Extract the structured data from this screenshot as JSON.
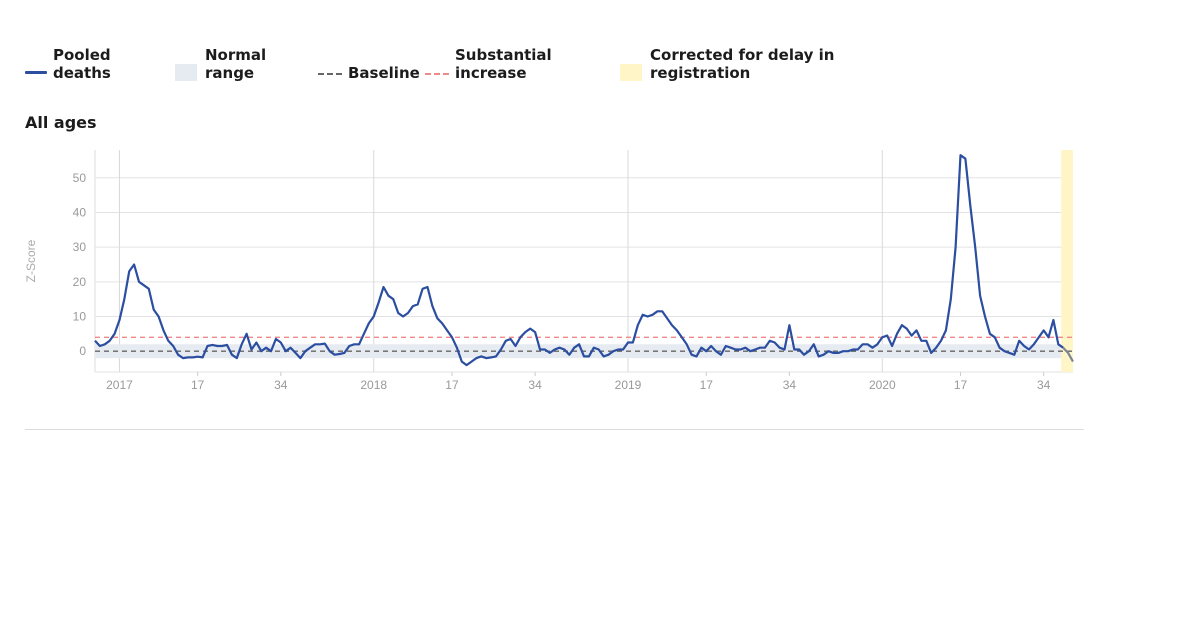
{
  "legend": {
    "pooled": "Pooled\ndeaths",
    "normal": "Normal\nrange",
    "baseline": "Baseline",
    "substantial": "Substantial\nincrease",
    "corrected": "Corrected for delay in\nregistration"
  },
  "chart_data": {
    "type": "line",
    "title": "All ages",
    "xlabel": "",
    "ylabel": "Z-Score",
    "ylim": [
      -6,
      58
    ],
    "yticks": [
      0,
      10,
      20,
      30,
      40,
      50
    ],
    "year_labels": [
      "2017",
      "2018",
      "2019",
      "2020"
    ],
    "week_labels": [
      "17",
      "34",
      "17",
      "34",
      "17",
      "34",
      "17",
      "34"
    ],
    "baseline": 0,
    "substantial_increase_threshold": 4,
    "normal_range": [
      -2,
      2
    ],
    "series": [
      {
        "name": "Pooled deaths",
        "color": "#2b4ea0",
        "values": [
          3,
          1.5,
          2,
          3,
          5,
          9,
          15,
          23,
          25,
          20,
          19,
          18,
          12,
          10,
          6,
          3,
          1.5,
          -1,
          -2,
          -1.8,
          -1.8,
          -1.6,
          -1.8,
          1.5,
          1.8,
          1.5,
          1.5,
          1.8,
          -1,
          -2,
          2,
          5,
          0.5,
          2.5,
          0,
          1,
          0,
          3.5,
          2.5,
          0,
          1,
          -0.5,
          -2,
          0,
          1,
          2,
          2,
          2.2,
          0,
          -1,
          -0.8,
          -0.5,
          1.5,
          2,
          2,
          5,
          8,
          10,
          14,
          18.5,
          16,
          15,
          11,
          10,
          11,
          13,
          13.5,
          18,
          18.5,
          13,
          9.5,
          8,
          6,
          4,
          1,
          -3,
          -4,
          -3,
          -2,
          -1.5,
          -2,
          -1.8,
          -1.5,
          0.5,
          3,
          3.5,
          1.5,
          4,
          5.5,
          6.5,
          5.5,
          0.5,
          0.5,
          -0.5,
          0.5,
          1,
          0.5,
          -1,
          1,
          2,
          -1.5,
          -1.5,
          1,
          0.5,
          -1.5,
          -1,
          0,
          0.5,
          0.5,
          2.5,
          2.5,
          7.5,
          10.5,
          10,
          10.5,
          11.5,
          11.5,
          9.5,
          7.5,
          6,
          4,
          2,
          -1,
          -1.5,
          1,
          0,
          1.5,
          0,
          -1,
          1.5,
          1,
          0.5,
          0.5,
          1,
          0,
          0.5,
          1,
          1,
          3,
          2.5,
          1,
          0.5,
          7.5,
          0.5,
          0.5,
          -1,
          0,
          2,
          -1.5,
          -1,
          0,
          -0.5,
          -0.5,
          0,
          0,
          0.5,
          0.5,
          2,
          2,
          1,
          2,
          4,
          4.5,
          1.5,
          5,
          7.5,
          6.5,
          4.5,
          6,
          3,
          3,
          -0.5,
          1,
          3,
          6,
          15,
          30,
          56.5,
          55.5,
          42,
          30,
          16,
          10,
          5,
          4,
          1,
          0,
          -0.5,
          -1,
          3,
          1.5,
          0.5,
          2,
          4,
          6,
          4,
          9,
          2,
          1,
          -0.5,
          -3
        ]
      }
    ]
  }
}
